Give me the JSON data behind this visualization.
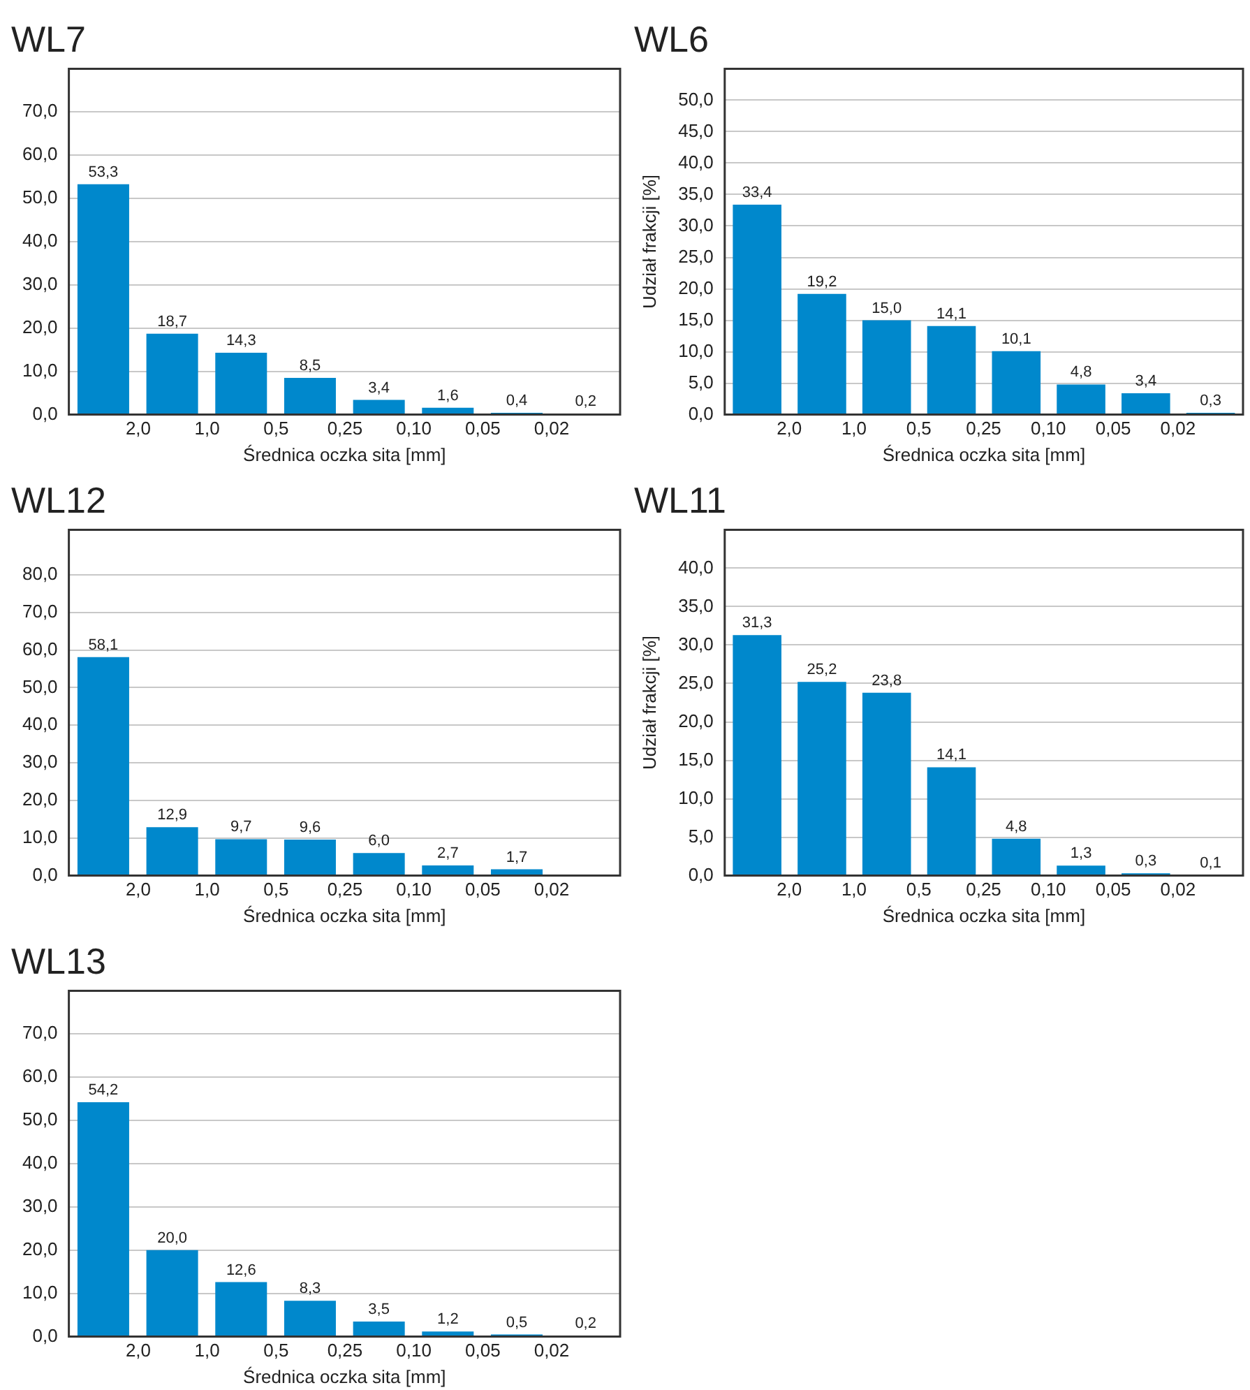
{
  "chart_data": [
    {
      "type": "bar",
      "title": "WL7",
      "xlabel": "Średnica oczka sita [mm]",
      "categories": [
        "2,0",
        "1,0",
        "0,5",
        "0,25",
        "0,10",
        "0,05",
        "0,02",
        null
      ],
      "values": [
        53.3,
        18.7,
        14.3,
        8.5,
        3.4,
        1.6,
        0.4,
        0.2
      ],
      "value_labels": [
        "53,3",
        "18,7",
        "14,3",
        "8,5",
        "3,4",
        "1,6",
        "0,4",
        "0,2"
      ],
      "color": "#0088cc",
      "ylim": [
        0,
        80
      ],
      "yticks": [
        {
          "value": 0,
          "label": "0,0"
        },
        {
          "value": 10,
          "label": "10,0"
        },
        {
          "value": 20,
          "label": "20,0"
        },
        {
          "value": 30,
          "label": "30,0"
        },
        {
          "value": 40,
          "label": "40,0"
        },
        {
          "value": 50,
          "label": "50,0"
        },
        {
          "value": 60,
          "label": "60,0"
        },
        {
          "value": 70,
          "label": "70,0"
        }
      ],
      "grid": "y"
    },
    {
      "type": "bar",
      "title": "WL6",
      "xlabel": "Średnica oczka sita [mm]",
      "ylabel": "Udział frakcji [%]",
      "categories": [
        "2,0",
        "1,0",
        "0,5",
        "0,25",
        "0,10",
        "0,05",
        "0,02",
        null
      ],
      "values": [
        33.4,
        19.2,
        15.0,
        14.1,
        10.1,
        4.8,
        3.4,
        0.3
      ],
      "value_labels": [
        "33,4",
        "19,2",
        "15,0",
        "14,1",
        "10,1",
        "4,8",
        "3,4",
        "0,3"
      ],
      "color": "#0088cc",
      "ylim": [
        0,
        55
      ],
      "yticks": [
        {
          "value": 0,
          "label": "0,0"
        },
        {
          "value": 5,
          "label": "5,0"
        },
        {
          "value": 10,
          "label": "10,0"
        },
        {
          "value": 15,
          "label": "15,0"
        },
        {
          "value": 20,
          "label": "20,0"
        },
        {
          "value": 25,
          "label": "25,0"
        },
        {
          "value": 30,
          "label": "30,0"
        },
        {
          "value": 35,
          "label": "35,0"
        },
        {
          "value": 40,
          "label": "40,0"
        },
        {
          "value": 45,
          "label": "45,0"
        },
        {
          "value": 50,
          "label": "50,0"
        }
      ],
      "grid": "y"
    },
    {
      "type": "bar",
      "title": "WL12",
      "xlabel": "Średnica oczka sita [mm]",
      "categories": [
        "2,0",
        "1,0",
        "0,5",
        "0,25",
        "0,10",
        "0,05",
        "0,02",
        null
      ],
      "values": [
        58.1,
        12.9,
        9.7,
        9.6,
        6.0,
        2.7,
        1.7,
        null
      ],
      "value_labels": [
        "58,1",
        "12,9",
        "9,7",
        "9,6",
        "6,0",
        "2,7",
        "1,7",
        null
      ],
      "color": "#0088cc",
      "ylim": [
        0,
        92
      ],
      "yticks": [
        {
          "value": 0,
          "label": "0,0"
        },
        {
          "value": 10,
          "label": "10,0"
        },
        {
          "value": 20,
          "label": "20,0"
        },
        {
          "value": 30,
          "label": "30,0"
        },
        {
          "value": 40,
          "label": "40,0"
        },
        {
          "value": 50,
          "label": "50,0"
        },
        {
          "value": 60,
          "label": "60,0"
        },
        {
          "value": 70,
          "label": "70,0"
        },
        {
          "value": 80,
          "label": "80,0"
        }
      ],
      "grid": "y"
    },
    {
      "type": "bar",
      "title": "WL11",
      "xlabel": "Średnica oczka sita [mm]",
      "ylabel": "Udział frakcji [%]",
      "categories": [
        "2,0",
        "1,0",
        "0,5",
        "0,25",
        "0,10",
        "0,05",
        "0,02",
        null
      ],
      "values": [
        31.3,
        25.2,
        23.8,
        14.1,
        4.8,
        1.3,
        0.3,
        0.1
      ],
      "value_labels": [
        "31,3",
        "25,2",
        "23,8",
        "14,1",
        "4,8",
        "1,3",
        "0,3",
        "0,1"
      ],
      "color": "#0088cc",
      "ylim": [
        0,
        45
      ],
      "yticks": [
        {
          "value": 0,
          "label": "0,0"
        },
        {
          "value": 5,
          "label": "5,0"
        },
        {
          "value": 10,
          "label": "10,0"
        },
        {
          "value": 15,
          "label": "15,0"
        },
        {
          "value": 20,
          "label": "20,0"
        },
        {
          "value": 25,
          "label": "25,0"
        },
        {
          "value": 30,
          "label": "30,0"
        },
        {
          "value": 35,
          "label": "35,0"
        },
        {
          "value": 40,
          "label": "40,0"
        }
      ],
      "grid": "y"
    },
    {
      "type": "bar",
      "title": "WL13",
      "xlabel": "Średnica oczka sita [mm]",
      "categories": [
        "2,0",
        "1,0",
        "0,5",
        "0,25",
        "0,10",
        "0,05",
        "0,02",
        null
      ],
      "values": [
        54.2,
        20.0,
        12.6,
        8.3,
        3.5,
        1.2,
        0.5,
        0.2
      ],
      "value_labels": [
        "54,2",
        "20,0",
        "12,6",
        "8,3",
        "3,5",
        "1,2",
        "0,5",
        "0,2"
      ],
      "color": "#0088cc",
      "ylim": [
        0,
        80
      ],
      "yticks": [
        {
          "value": 0,
          "label": "0,0"
        },
        {
          "value": 10,
          "label": "10,0"
        },
        {
          "value": 20,
          "label": "20,0"
        },
        {
          "value": 30,
          "label": "30,0"
        },
        {
          "value": 40,
          "label": "40,0"
        },
        {
          "value": 50,
          "label": "50,0"
        },
        {
          "value": 60,
          "label": "60,0"
        },
        {
          "value": 70,
          "label": "70,0"
        }
      ],
      "grid": "y"
    }
  ]
}
